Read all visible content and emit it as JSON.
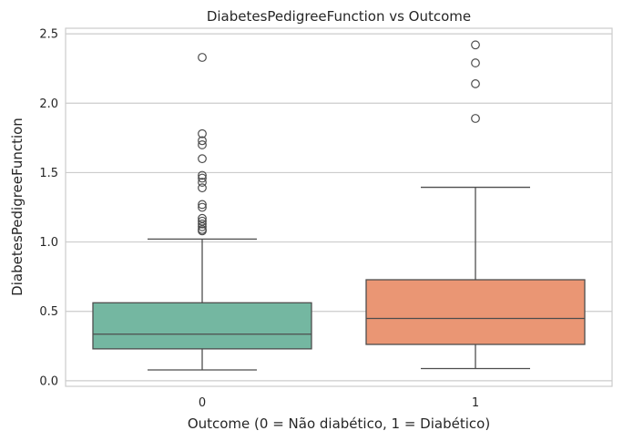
{
  "chart_data": {
    "type": "box",
    "title": "DiabetesPedigreeFunction vs Outcome",
    "xlabel": "Outcome (0 = Não diabético, 1 = Diabético)",
    "ylabel": "DiabetesPedigreeFunction",
    "categories": [
      "0",
      "1"
    ],
    "ylim": [
      -0.04,
      2.54
    ],
    "yticks": [
      0.0,
      0.5,
      1.0,
      1.5,
      2.0,
      2.5
    ],
    "ytick_labels": [
      "0.0",
      "0.5",
      "1.0",
      "1.5",
      "2.0",
      "2.5"
    ],
    "grid": true,
    "colors": [
      "#74b7a1",
      "#ea9674"
    ],
    "boxes": [
      {
        "category": "0",
        "whislo": 0.078,
        "q1": 0.23,
        "median": 0.336,
        "q3": 0.562,
        "whishi": 1.021,
        "fliers": [
          1.08,
          1.09,
          1.11,
          1.13,
          1.15,
          1.17,
          1.25,
          1.27,
          1.39,
          1.43,
          1.46,
          1.48,
          1.6,
          1.7,
          1.73,
          1.78,
          2.33
        ]
      },
      {
        "category": "1",
        "whislo": 0.088,
        "q1": 0.262,
        "median": 0.449,
        "q3": 0.728,
        "whishi": 1.394,
        "fliers": [
          1.89,
          2.14,
          2.29,
          2.42
        ]
      }
    ]
  }
}
